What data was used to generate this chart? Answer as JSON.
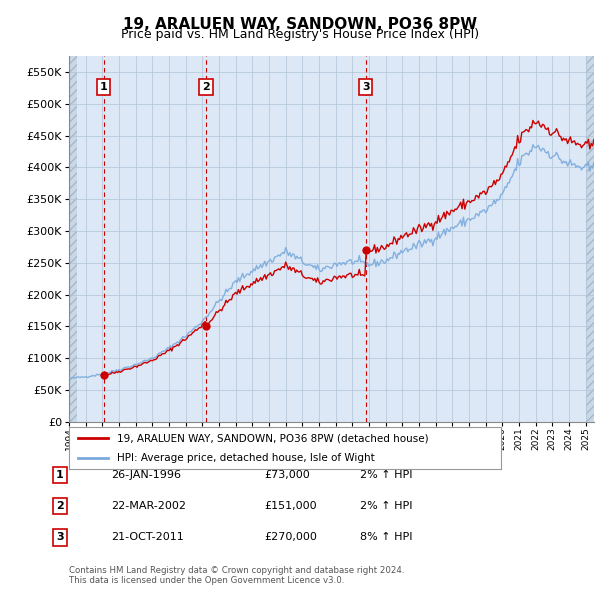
{
  "title": "19, ARALUEN WAY, SANDOWN, PO36 8PW",
  "subtitle": "Price paid vs. HM Land Registry's House Price Index (HPI)",
  "legend_label_red": "19, ARALUEN WAY, SANDOWN, PO36 8PW (detached house)",
  "legend_label_blue": "HPI: Average price, detached house, Isle of Wight",
  "footer1": "Contains HM Land Registry data © Crown copyright and database right 2024.",
  "footer2": "This data is licensed under the Open Government Licence v3.0.",
  "transactions": [
    {
      "num": 1,
      "date": "26-JAN-1996",
      "price": 73000,
      "year": 1996.08,
      "pct": "2%",
      "dir": "↑"
    },
    {
      "num": 2,
      "date": "22-MAR-2002",
      "price": 151000,
      "year": 2002.22,
      "pct": "2%",
      "dir": "↑"
    },
    {
      "num": 3,
      "date": "21-OCT-2011",
      "price": 270000,
      "year": 2011.8,
      "pct": "8%",
      "dir": "↑"
    }
  ],
  "xmin": 1994.0,
  "xmax": 2025.5,
  "ymin": 0,
  "ymax": 575000,
  "yticks": [
    0,
    50000,
    100000,
    150000,
    200000,
    250000,
    300000,
    350000,
    400000,
    450000,
    500000,
    550000
  ],
  "background_color": "#dce8f5",
  "hatch_color": "#c8d8e8",
  "grid_color": "#b0c4d8",
  "red_color": "#cc0000",
  "blue_color": "#7aaadd"
}
